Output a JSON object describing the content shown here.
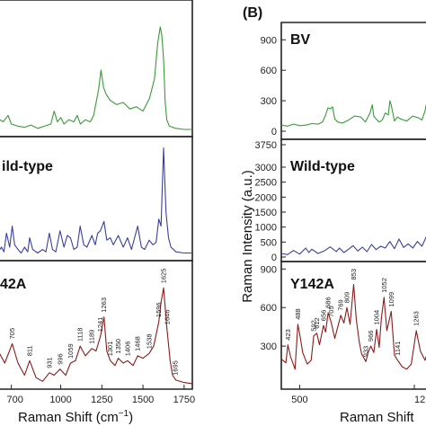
{
  "panel_letter_b": "(B)",
  "chart_data": [
    {
      "type": "line",
      "panel": "A",
      "xlabel": "Raman Shift (cm⁻¹)",
      "xlim": [
        620,
        1800
      ],
      "x_ticks": [
        "700",
        "1000",
        "1250",
        "1500",
        "1750"
      ],
      "grid": false,
      "legend": "none",
      "series": [
        {
          "name": "",
          "color": "#3a9a3a",
          "x": [
            620,
            650,
            680,
            700,
            740,
            780,
            820,
            860,
            900,
            940,
            960,
            980,
            1000,
            1020,
            1050,
            1080,
            1100,
            1120,
            1150,
            1180,
            1200,
            1230,
            1245,
            1260,
            1275,
            1300,
            1340,
            1380,
            1420,
            1460,
            1500,
            1540,
            1570,
            1590,
            1605,
            1615,
            1625,
            1635,
            1645,
            1660,
            1700,
            1750,
            1800
          ],
          "values": [
            0.15,
            0.12,
            0.18,
            0.1,
            0.08,
            0.07,
            0.09,
            0.06,
            0.08,
            0.1,
            0.22,
            0.12,
            0.16,
            0.1,
            0.14,
            0.12,
            0.18,
            0.1,
            0.14,
            0.12,
            0.18,
            0.42,
            0.6,
            0.44,
            0.38,
            0.32,
            0.28,
            0.3,
            0.24,
            0.26,
            0.22,
            0.34,
            0.52,
            0.86,
            1.0,
            0.92,
            0.7,
            0.3,
            0.14,
            0.08,
            0.06,
            0.05,
            0.05
          ]
        },
        {
          "name": "",
          "color": "#3a3f9e",
          "x": [
            620,
            640,
            655,
            670,
            690,
            705,
            720,
            740,
            760,
            780,
            800,
            811,
            830,
            860,
            890,
            910,
            931,
            950,
            970,
            996,
            1020,
            1040,
            1059,
            1080,
            1100,
            1118,
            1140,
            1160,
            1189,
            1210,
            1225,
            1241,
            1263,
            1280,
            1301,
            1320,
            1350,
            1380,
            1406,
            1430,
            1468,
            1490,
            1510,
            1538,
            1560,
            1580,
            1596,
            1610,
            1625,
            1640,
            1655,
            1670,
            1700,
            1750,
            1800
          ],
          "values": [
            0.06,
            0.1,
            0.06,
            0.22,
            0.1,
            0.28,
            0.12,
            0.08,
            0.05,
            0.1,
            0.06,
            0.18,
            0.08,
            0.05,
            0.08,
            0.06,
            0.22,
            0.08,
            0.06,
            0.24,
            0.1,
            0.2,
            0.18,
            0.08,
            0.1,
            0.28,
            0.12,
            0.1,
            0.2,
            0.12,
            0.22,
            0.24,
            0.32,
            0.16,
            0.18,
            0.12,
            0.2,
            0.1,
            0.18,
            0.08,
            0.28,
            0.1,
            0.08,
            0.16,
            0.12,
            0.14,
            0.34,
            0.28,
            0.95,
            0.4,
            0.18,
            0.1,
            0.06,
            0.05,
            0.05
          ]
        },
        {
          "name": "",
          "color": "#8b1c1c",
          "x": [
            620,
            660,
            705,
            740,
            780,
            811,
            850,
            890,
            931,
            960,
            996,
            1030,
            1059,
            1090,
            1118,
            1150,
            1189,
            1215,
            1241,
            1263,
            1280,
            1301,
            1330,
            1350,
            1380,
            1406,
            1440,
            1468,
            1500,
            1538,
            1565,
            1596,
            1610,
            1625,
            1646,
            1665,
            1680,
            1700,
            1750,
            1800
          ],
          "values": [
            0.3,
            0.2,
            0.36,
            0.2,
            0.1,
            0.22,
            0.08,
            0.05,
            0.12,
            0.1,
            0.15,
            0.1,
            0.2,
            0.22,
            0.34,
            0.26,
            0.32,
            0.3,
            0.42,
            0.58,
            0.3,
            0.22,
            0.18,
            0.24,
            0.2,
            0.22,
            0.18,
            0.26,
            0.24,
            0.28,
            0.34,
            0.54,
            0.7,
            0.82,
            0.48,
            0.22,
            0.1,
            0.06,
            0.04,
            0.03
          ]
        }
      ],
      "annotations": [
        "705",
        "811",
        "931",
        "996",
        "1059",
        "1118",
        "1189",
        "1241",
        "1263",
        "1301",
        "1350",
        "1406",
        "1468",
        "1538",
        "1596",
        "1625",
        "1646",
        "1695"
      ]
    },
    {
      "type": "line",
      "panel": "B",
      "xlabel": "Raman Shift",
      "ylabel": "Raman Intensity (a.u.)",
      "xlim": [
        380,
        1350
      ],
      "x_ticks": [
        "500",
        "12"
      ],
      "grid": false,
      "legend": "none",
      "series": [
        {
          "name": "BV",
          "color": "#3a9a3a",
          "ylim": [
            0,
            1000
          ],
          "y_ticks": [
            "900",
            "600",
            "300",
            "0"
          ],
          "x": [
            380,
            420,
            460,
            500,
            540,
            580,
            620,
            650,
            670,
            685,
            700,
            715,
            730,
            750,
            780,
            820,
            860,
            900,
            930,
            960,
            975,
            985,
            1000,
            1020,
            1040,
            1060,
            1080,
            1090,
            1100,
            1120,
            1140,
            1160,
            1200,
            1240,
            1280,
            1300,
            1320,
            1340,
            1350
          ],
          "values": [
            60,
            50,
            70,
            55,
            60,
            75,
            70,
            90,
            160,
            230,
            220,
            240,
            120,
            90,
            80,
            110,
            150,
            140,
            90,
            180,
            260,
            150,
            120,
            90,
            110,
            180,
            160,
            300,
            250,
            100,
            140,
            120,
            100,
            150,
            130,
            110,
            200,
            350,
            520
          ]
        },
        {
          "name": "Wild-type",
          "color": "#3a3f9e",
          "ylim": [
            0,
            3750
          ],
          "y_ticks": [
            "3750",
            "3000",
            "2500",
            "2000",
            "1500",
            "1000",
            "500",
            "0"
          ],
          "x": [
            380,
            420,
            460,
            500,
            540,
            560,
            580,
            620,
            660,
            700,
            740,
            760,
            790,
            820,
            850,
            880,
            910,
            940,
            970,
            1000,
            1030,
            1060,
            1090,
            1120,
            1150,
            1180,
            1210,
            1240,
            1270,
            1300,
            1330,
            1350
          ],
          "values": [
            120,
            80,
            220,
            100,
            300,
            150,
            260,
            120,
            200,
            340,
            180,
            300,
            150,
            260,
            380,
            200,
            330,
            180,
            420,
            250,
            360,
            300,
            520,
            280,
            600,
            320,
            440,
            300,
            520,
            360,
            700,
            900
          ]
        },
        {
          "name": "Y142A",
          "color": "#8b1c1c",
          "ylim": [
            0,
            1000
          ],
          "y_ticks": [
            "900",
            "600",
            "300"
          ],
          "x": [
            380,
            410,
            423,
            440,
            470,
            488,
            505,
            520,
            550,
            575,
            592,
            612,
            630,
            656,
            670,
            686,
            705,
            730,
            769,
            790,
            809,
            830,
            853,
            870,
            890,
            905,
            933,
            950,
            966,
            985,
            1004,
            1020,
            1035,
            1052,
            1070,
            1099,
            1120,
            1141,
            1170,
            1200,
            1230,
            1263,
            1290,
            1320,
            1350
          ],
          "values": [
            200,
            170,
            310,
            220,
            120,
            470,
            360,
            250,
            160,
            190,
            380,
            400,
            310,
            460,
            410,
            560,
            490,
            360,
            540,
            480,
            600,
            470,
            780,
            510,
            330,
            240,
            180,
            260,
            300,
            250,
            430,
            290,
            520,
            680,
            420,
            570,
            230,
            190,
            140,
            120,
            160,
            420,
            260,
            190,
            300
          ]
        }
      ],
      "annotations": [
        "423",
        "488",
        "592",
        "612",
        "656",
        "686",
        "705",
        "769",
        "809",
        "853",
        "933",
        "966",
        "1004",
        "1052",
        "1099",
        "1141",
        "1263"
      ]
    }
  ],
  "labels": {
    "panel_a_top": "",
    "panel_a_mid": "ild-type",
    "panel_a_bot": "42A",
    "panel_b_top": "BV",
    "panel_b_mid": "Wild-type",
    "panel_b_bot": "Y142A",
    "xaxis_a": "Raman Shift (cm",
    "xaxis_a_sup": "−1",
    "xaxis_a_close": ")",
    "xaxis_b": "Raman Shift",
    "yaxis_b": "Raman Intensity (a.u.)"
  }
}
